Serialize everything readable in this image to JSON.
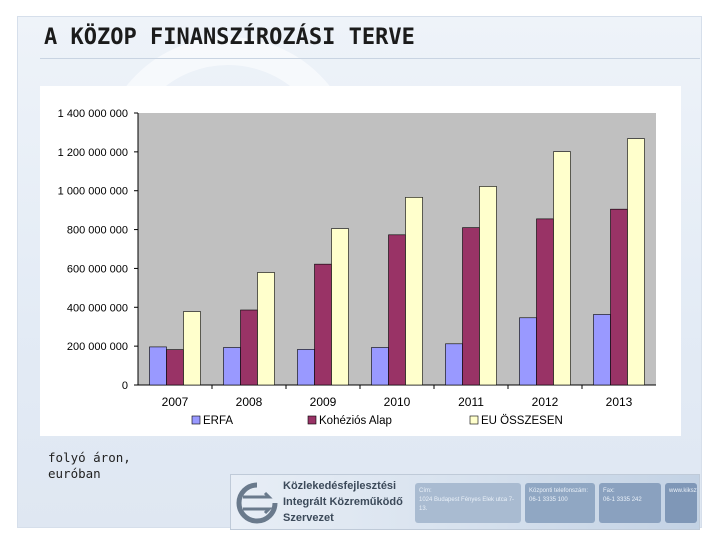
{
  "slide": {
    "title": "A KÖZOP FINANSZÍROZÁSI TERVE",
    "footnote": "folyó áron,\neuróban"
  },
  "footer": {
    "org_name": "Közlekedésfejlesztési\nIntegrált Közreműködő\nSzervezet",
    "contacts": [
      {
        "text": "Cím:\n1024 Budapest Fényes Elek utca 7-13.",
        "color": "#a9bbd1"
      },
      {
        "text": "Központi telefonszám:\n06-1 3335 100",
        "color": "#90a7c3"
      },
      {
        "text": "Fax:\n06-1 3335 242",
        "color": "#8aa1bf"
      },
      {
        "text": "www.kikszt.hu",
        "color": "#7f97b7"
      }
    ]
  },
  "chart_data": {
    "type": "bar",
    "categories": [
      "2007",
      "2008",
      "2009",
      "2010",
      "2011",
      "2012",
      "2013"
    ],
    "series": [
      {
        "name": "ERFA",
        "color": "#9999ff",
        "values": [
          196000000,
          193000000,
          183000000,
          193000000,
          212000000,
          346000000,
          363000000
        ]
      },
      {
        "name": "Kohéziós Alap",
        "color": "#993366",
        "values": [
          182000000,
          386000000,
          622000000,
          773000000,
          810000000,
          855000000,
          905000000
        ]
      },
      {
        "name": "EU ÖSSZESEN",
        "color": "#ffffcc",
        "values": [
          378000000,
          579000000,
          805000000,
          966000000,
          1022000000,
          1201000000,
          1268000000
        ]
      }
    ],
    "ylim": [
      0,
      1400000000
    ],
    "yticks": [
      "0",
      "200 000 000",
      "400 000 000",
      "600 000 000",
      "800 000 000",
      "1 000 000 000",
      "1 200 000 000",
      "1 400 000 000"
    ],
    "plot_background": "#c0c0c0",
    "legend": "bottom",
    "grid": false
  }
}
